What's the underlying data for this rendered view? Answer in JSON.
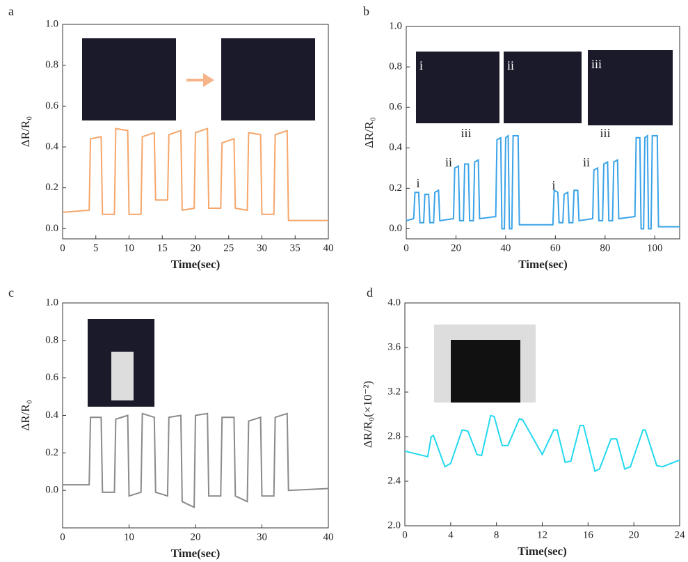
{
  "chart_data": [
    {
      "type": "line",
      "panel": "a",
      "xlabel": "Time(sec)",
      "ylabel": "ΔR/R₀",
      "color": "#f5a66b",
      "xlim": [
        0,
        40
      ],
      "ylim": [
        -0.05,
        1.0
      ],
      "xticks": [
        0,
        5,
        10,
        15,
        20,
        25,
        30,
        35,
        40
      ],
      "yticks": [
        {
          "value": 0,
          "label": "0.0"
        },
        0.2,
        0.4,
        0.6,
        0.8,
        {
          "value": 1,
          "label": "1.0"
        }
      ],
      "x": [
        0,
        4,
        4.2,
        5.8,
        6,
        7.8,
        8,
        9.8,
        10,
        11.8,
        12,
        13.8,
        14,
        15.8,
        16,
        17.8,
        18,
        19.8,
        20,
        21.8,
        22,
        23.8,
        24,
        25.8,
        26,
        27.8,
        28,
        29.8,
        30,
        31.8,
        32,
        33.8,
        34,
        40
      ],
      "values": [
        0.08,
        0.09,
        0.44,
        0.45,
        0.07,
        0.07,
        0.49,
        0.48,
        0.07,
        0.07,
        0.45,
        0.47,
        0.14,
        0.14,
        0.46,
        0.48,
        0.09,
        0.1,
        0.47,
        0.49,
        0.1,
        0.1,
        0.42,
        0.44,
        0.1,
        0.09,
        0.47,
        0.46,
        0.07,
        0.07,
        0.46,
        0.48,
        0.04,
        0.04
      ]
    },
    {
      "type": "line",
      "panel": "b",
      "xlabel": "Time(sec)",
      "ylabel": "ΔR/R₀",
      "color": "#3aa3e8",
      "xlim": [
        0,
        110
      ],
      "ylim": [
        -0.05,
        1.0
      ],
      "xticks": [
        0,
        20,
        40,
        60,
        80,
        100
      ],
      "yticks": [
        {
          "value": 0,
          "label": "0.0"
        },
        0.2,
        0.4,
        0.6,
        0.8,
        {
          "value": 1,
          "label": "1.0"
        }
      ],
      "annotations": [
        "i",
        "ii",
        "iii",
        "i",
        "ii",
        "iii"
      ],
      "photo_labels": [
        "i",
        "ii",
        "iii"
      ],
      "x": [
        0,
        3,
        3.5,
        5,
        5.5,
        7,
        7.5,
        9,
        9.5,
        11,
        11.5,
        13,
        13.5,
        19,
        19.5,
        21,
        21.5,
        23,
        23.5,
        25,
        25.5,
        27,
        27.5,
        29,
        29.5,
        36,
        36.5,
        38,
        38.5,
        39.5,
        40,
        41,
        41.5,
        42.5,
        43,
        45,
        45.5,
        59,
        59.5,
        61,
        61.5,
        63,
        63.5,
        65,
        65.5,
        67,
        67.5,
        69,
        69.5,
        75,
        75.5,
        77,
        77.5,
        79,
        79.5,
        81,
        81.5,
        83,
        83.5,
        85,
        85.5,
        92,
        92.5,
        94,
        94.5,
        95.5,
        96,
        97,
        97.5,
        98.5,
        99,
        101,
        101.5,
        110
      ],
      "values": [
        0.04,
        0.05,
        0.18,
        0.18,
        0.03,
        0.03,
        0.17,
        0.17,
        0.03,
        0.03,
        0.18,
        0.19,
        0.04,
        0.05,
        0.3,
        0.31,
        0.04,
        0.04,
        0.32,
        0.32,
        0.04,
        0.04,
        0.33,
        0.34,
        0.05,
        0.06,
        0.44,
        0.45,
        0,
        0,
        0.45,
        0.46,
        0,
        0,
        0.46,
        0.46,
        0.02,
        0.02,
        0.19,
        0.18,
        0.03,
        0.03,
        0.17,
        0.18,
        0.03,
        0.03,
        0.19,
        0.19,
        0.04,
        0.05,
        0.29,
        0.3,
        0.04,
        0.04,
        0.32,
        0.33,
        0.04,
        0.04,
        0.33,
        0.34,
        0.05,
        0.06,
        0.45,
        0.45,
        0,
        0,
        0.45,
        0.46,
        0,
        0,
        0.46,
        0.46,
        0.01,
        0.01
      ]
    },
    {
      "type": "line",
      "panel": "c",
      "xlabel": "Time(sec)",
      "ylabel": "ΔR/R₀",
      "color": "#8a8a8a",
      "xlim": [
        0,
        40
      ],
      "ylim": [
        -0.2,
        1.0
      ],
      "xticks": [
        0,
        10,
        20,
        30,
        40
      ],
      "yticks": [
        {
          "value": 0,
          "label": "0.0"
        },
        0.2,
        0.4,
        0.6,
        0.8,
        {
          "value": 1,
          "label": "1.0"
        }
      ],
      "x": [
        0,
        4,
        4.2,
        5.8,
        6,
        7.8,
        8,
        9.8,
        10,
        11.8,
        12,
        13.8,
        14,
        15.8,
        16,
        17.8,
        18,
        19.8,
        20,
        21.8,
        22,
        23.8,
        24,
        25.8,
        26,
        27.8,
        28,
        29.8,
        30,
        31.8,
        32,
        33.8,
        34,
        40
      ],
      "values": [
        0.03,
        0.03,
        0.39,
        0.39,
        -0.01,
        -0.01,
        0.38,
        0.4,
        -0.03,
        -0.01,
        0.41,
        0.39,
        -0.01,
        -0.03,
        0.39,
        0.4,
        -0.06,
        -0.09,
        0.4,
        0.41,
        -0.03,
        -0.03,
        0.39,
        0.39,
        -0.03,
        -0.06,
        0.37,
        0.39,
        -0.03,
        -0.03,
        0.39,
        0.41,
        0,
        0.01
      ]
    },
    {
      "type": "line",
      "panel": "d",
      "xlabel": "Time(sec)",
      "ylabel": "ΔR/R₀(×10⁻²)",
      "color": "#22d8f0",
      "xlim": [
        0,
        24
      ],
      "ylim": [
        2.0,
        4.0
      ],
      "xticks": [
        0,
        4,
        8,
        12,
        16,
        20,
        24
      ],
      "yticks": [
        {
          "value": 2,
          "label": "2.0"
        },
        2.4,
        2.8,
        3.2,
        3.6,
        {
          "value": 4,
          "label": "4.0"
        }
      ],
      "x": [
        0,
        2,
        2.3,
        2.5,
        3.5,
        4,
        5,
        5.5,
        6.3,
        6.7,
        7.5,
        7.8,
        8.5,
        9,
        10,
        10.3,
        12,
        13,
        13.3,
        14,
        14.5,
        15.3,
        15.6,
        16.6,
        17,
        18,
        18.5,
        19.2,
        19.7,
        20.8,
        21,
        22,
        22.5,
        24
      ],
      "values": [
        2.67,
        2.62,
        2.8,
        2.81,
        2.53,
        2.56,
        2.86,
        2.85,
        2.64,
        2.63,
        2.99,
        2.98,
        2.72,
        2.72,
        2.96,
        2.95,
        2.64,
        2.86,
        2.86,
        2.57,
        2.58,
        2.9,
        2.9,
        2.49,
        2.51,
        2.78,
        2.78,
        2.51,
        2.53,
        2.86,
        2.86,
        2.54,
        2.53,
        2.59
      ]
    }
  ]
}
